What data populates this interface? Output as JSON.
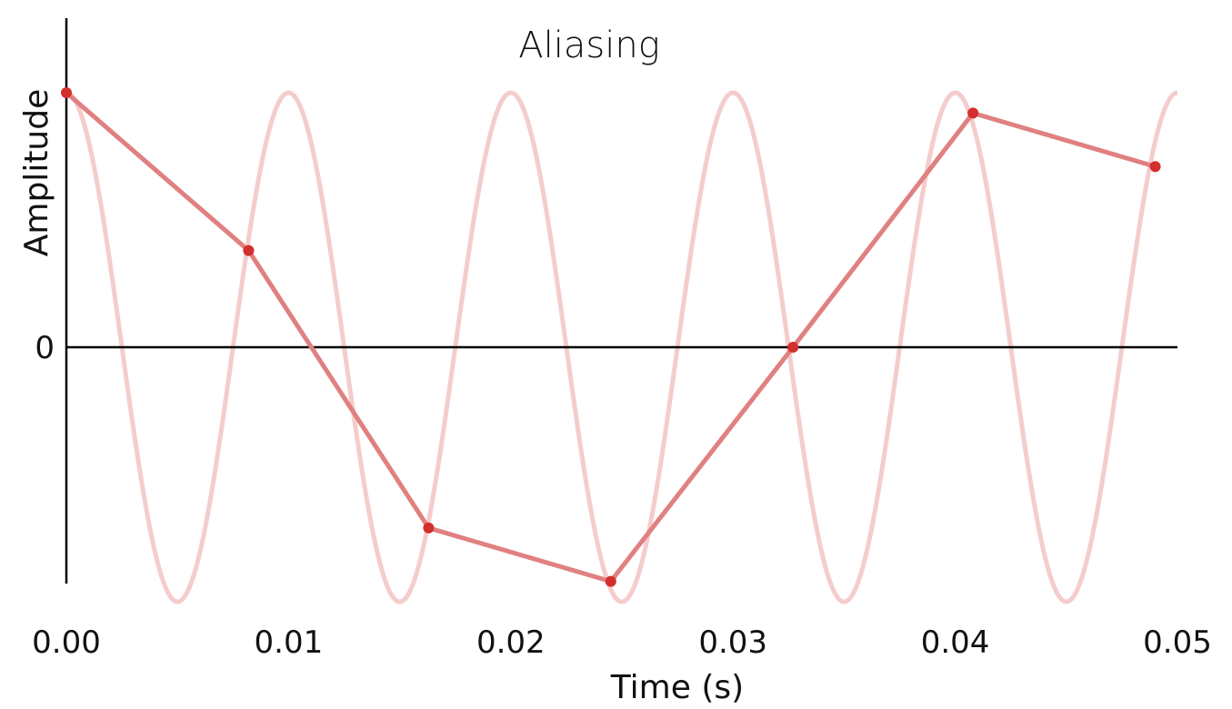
{
  "chart_data": {
    "type": "line",
    "title": "Aliasing",
    "xlabel": "Time (s)",
    "ylabel": "Amplitude",
    "xlim": [
      0,
      0.05
    ],
    "ylim": [
      -1.0,
      1.0
    ],
    "x_ticks": [
      {
        "value": 0.0,
        "label": "0.00"
      },
      {
        "value": 0.01,
        "label": "0.01"
      },
      {
        "value": 0.02,
        "label": "0.02"
      },
      {
        "value": 0.03,
        "label": "0.03"
      },
      {
        "value": 0.04,
        "label": "0.04"
      },
      {
        "value": 0.05,
        "label": "0.05"
      }
    ],
    "y_ticks": [
      {
        "value": 0,
        "label": "0"
      }
    ],
    "grid": false,
    "underlying_signal": {
      "function": "cosine",
      "frequency_hz": 100,
      "amplitude": 1.0,
      "color": "#f5cccc"
    },
    "sampled_series": {
      "color": "#e08080",
      "marker_color": "#d32f2f",
      "x": [
        0.0,
        0.0082,
        0.0163,
        0.0245,
        0.0327,
        0.0408,
        0.049
      ],
      "y": [
        1.0,
        0.38,
        -0.71,
        -0.92,
        0.0,
        0.92,
        0.71
      ]
    }
  }
}
